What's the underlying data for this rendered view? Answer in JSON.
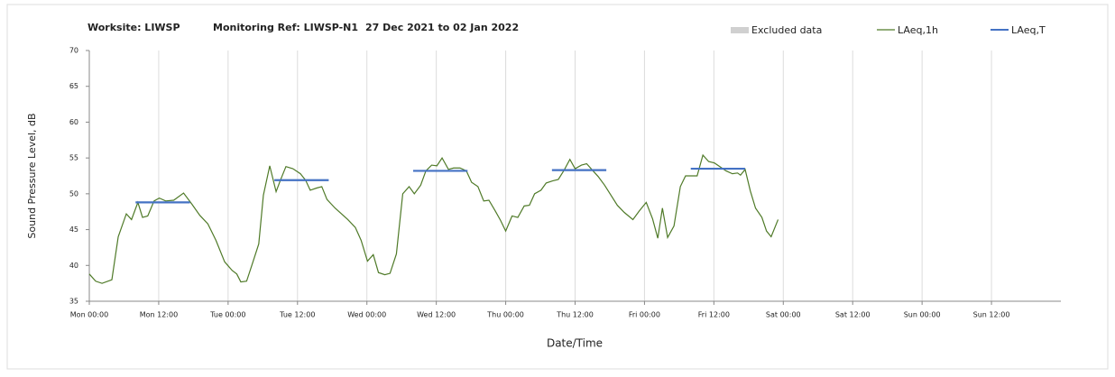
{
  "chart_data": {
    "type": "line",
    "title": [
      "Worksite: LIWSP",
      "Monitoring Ref: LIWSP-N1",
      "27 Dec 2021 to 02 Jan 2022"
    ],
    "xlabel": "Date/Time",
    "ylabel": "Sound Pressure Level, dB",
    "xlim": [
      0,
      168
    ],
    "ylim": [
      35,
      70
    ],
    "xticks": [
      {
        "value": 0,
        "label": "Mon 00:00"
      },
      {
        "value": 12,
        "label": "Mon 12:00"
      },
      {
        "value": 24,
        "label": "Tue 00:00"
      },
      {
        "value": 36,
        "label": "Tue 12:00"
      },
      {
        "value": 48,
        "label": "Wed 00:00"
      },
      {
        "value": 60,
        "label": "Wed 12:00"
      },
      {
        "value": 72,
        "label": "Thu 00:00"
      },
      {
        "value": 84,
        "label": "Thu 12:00"
      },
      {
        "value": 96,
        "label": "Fri 00:00"
      },
      {
        "value": 108,
        "label": "Fri 12:00"
      },
      {
        "value": 120,
        "label": "Sat 00:00"
      },
      {
        "value": 132,
        "label": "Sat 12:00"
      },
      {
        "value": 144,
        "label": "Sun 00:00"
      },
      {
        "value": 156,
        "label": "Sun 12:00"
      }
    ],
    "yticks": [
      35,
      40,
      45,
      50,
      55,
      60,
      65,
      70
    ],
    "grid": "x",
    "legend": "top-right",
    "series": [
      {
        "name": "Excluded data",
        "color": "#d0d0d0",
        "x": [],
        "values": []
      },
      {
        "name": "LAeq,1h",
        "color": "#4f7a28",
        "x": [
          0,
          1.1,
          2.2,
          3.9,
          5.0,
          6.4,
          7.3,
          8.4,
          9.2,
          10.1,
          11.2,
          12.1,
          13.2,
          14.6,
          16.3,
          17.7,
          19.1,
          20.5,
          21.9,
          23.4,
          24.7,
          25.5,
          26.2,
          27.2,
          28.3,
          29.3,
          30.1,
          31.2,
          32.3,
          33.1,
          34.0,
          35.2,
          36.5,
          37.4,
          38.2,
          39.3,
          40.2,
          41.1,
          42.5,
          43.6,
          44.7,
          46.0,
          47.0,
          48.1,
          49.1,
          50.0,
          51.1,
          52.0,
          53.1,
          54.2,
          55.3,
          56.2,
          57.3,
          58.2,
          59.2,
          60.1,
          61.0,
          62.1,
          63.0,
          64.1,
          65.2,
          66.1,
          67.2,
          68.2,
          69.1,
          70.2,
          71.1,
          72.0,
          73.1,
          74.1,
          75.2,
          76.1,
          77.0,
          78.1,
          79.0,
          80.1,
          81.1,
          82.1,
          83.1,
          84.0,
          85.1,
          86.0,
          87.1,
          88.0,
          89.1,
          90.2,
          91.3,
          92.5,
          94.0,
          95.1,
          96.3,
          97.4,
          98.3,
          99.1,
          100.0,
          101.1,
          102.2,
          103.1,
          104.0,
          105.1,
          106.1,
          107.1,
          108.1,
          109.2,
          110.1,
          111.2,
          112.1,
          112.6,
          113.4,
          114.3,
          115.2,
          116.3,
          117.1,
          117.9,
          119.1
        ],
        "values": [
          38.8,
          37.8,
          37.5,
          38,
          44,
          47.2,
          46.4,
          48.8,
          46.7,
          46.9,
          49,
          49.4,
          49,
          49.1,
          50.1,
          48.6,
          47,
          45.8,
          43.5,
          40.5,
          39.3,
          38.8,
          37.7,
          37.8,
          40.5,
          43,
          49.8,
          53.9,
          50.3,
          52,
          53.8,
          53.5,
          52.8,
          51.9,
          50.5,
          50.8,
          51,
          49.2,
          48,
          47.2,
          46.4,
          45.3,
          43.5,
          40.6,
          41.5,
          39,
          38.7,
          38.9,
          41.6,
          50,
          51,
          50,
          51.2,
          53.2,
          54,
          53.9,
          55,
          53.4,
          53.6,
          53.6,
          53.2,
          51.6,
          51,
          49,
          49.1,
          47.6,
          46.3,
          44.8,
          46.9,
          46.7,
          48.3,
          48.4,
          50,
          50.5,
          51.5,
          51.8,
          52,
          53.3,
          54.8,
          53.5,
          54,
          54.2,
          53.2,
          52.4,
          51.2,
          49.8,
          48.4,
          47.4,
          46.4,
          47.6,
          48.8,
          46.5,
          43.8,
          48,
          43.9,
          45.5,
          51,
          52.5,
          52.5,
          52.5,
          55.4,
          54.5,
          54.3,
          53.7,
          53.2,
          52.8,
          52.9,
          52.6,
          53.4,
          50.4,
          48,
          46.7,
          44.8,
          44,
          46.4
        ]
      },
      {
        "name": "LAeq,T",
        "color": "#4472c4",
        "x": [
          8,
          17.4,
          null,
          32,
          41.4,
          null,
          56,
          65.4,
          null,
          80,
          89.4,
          null,
          104,
          113.4
        ],
        "values": [
          48.8,
          48.8,
          null,
          51.9,
          51.9,
          null,
          53.2,
          53.2,
          null,
          53.3,
          53.3,
          null,
          53.5,
          53.5
        ]
      }
    ]
  }
}
